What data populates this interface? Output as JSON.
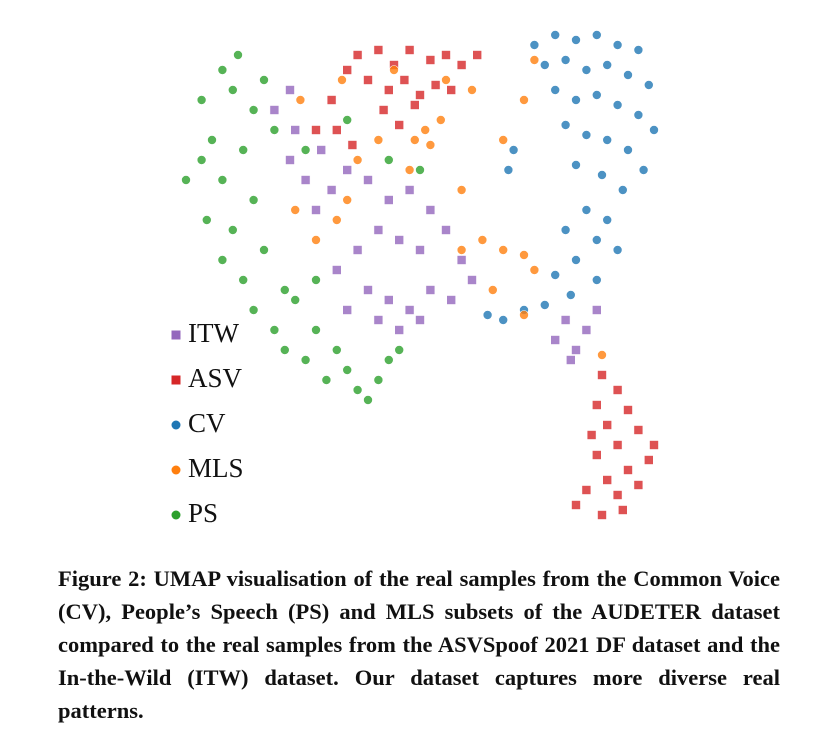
{
  "chart_data": {
    "type": "scatter",
    "xlim": [
      0,
      100
    ],
    "ylim": [
      0,
      100
    ],
    "series": [
      {
        "name": "ITW",
        "color": "#9467bd",
        "marker": "square",
        "x": [
          22,
          26,
          25,
          28,
          31,
          33,
          36,
          40,
          44,
          48,
          52,
          42,
          46,
          50,
          55,
          58,
          38,
          34,
          40,
          44,
          48,
          52,
          56,
          46,
          50,
          42,
          36,
          60,
          25,
          30,
          78,
          82,
          76,
          84,
          80,
          79
        ],
        "y": [
          84,
          80,
          74,
          70,
          76,
          68,
          72,
          70,
          66,
          68,
          64,
          60,
          58,
          56,
          60,
          54,
          56,
          52,
          48,
          46,
          44,
          48,
          46,
          40,
          42,
          42,
          44,
          50,
          88,
          64,
          42,
          40,
          38,
          44,
          36,
          34
        ]
      },
      {
        "name": "ASV",
        "color": "#d62728",
        "marker": "square",
        "x": [
          38,
          42,
          45,
          48,
          52,
          55,
          58,
          61,
          40,
          44,
          47,
          50,
          53,
          56,
          49,
          43,
          36,
          33,
          34,
          37,
          46,
          30,
          85,
          88,
          84,
          90,
          86,
          92,
          88,
          84,
          94,
          90,
          86,
          82,
          88,
          92,
          80,
          85,
          89,
          95,
          83
        ],
        "y": [
          95,
          96,
          93,
          96,
          94,
          95,
          93,
          95,
          90,
          88,
          90,
          87,
          89,
          88,
          85,
          84,
          92,
          86,
          80,
          77,
          81,
          80,
          31,
          28,
          25,
          24,
          21,
          20,
          17,
          15,
          14,
          12,
          10,
          8,
          7,
          9,
          5,
          3,
          4,
          17,
          19
        ]
      },
      {
        "name": "CV",
        "color": "#1f77b4",
        "marker": "circle",
        "x": [
          72,
          76,
          80,
          84,
          88,
          92,
          74,
          78,
          82,
          86,
          90,
          94,
          76,
          80,
          84,
          88,
          92,
          95,
          78,
          82,
          86,
          90,
          93,
          80,
          85,
          89,
          68,
          67,
          82,
          86,
          78,
          84,
          88,
          80,
          76,
          84,
          79,
          74,
          70,
          66,
          63
        ],
        "y": [
          97,
          99,
          98,
          99,
          97,
          96,
          93,
          94,
          92,
          93,
          91,
          89,
          88,
          86,
          87,
          85,
          83,
          80,
          81,
          79,
          78,
          76,
          72,
          73,
          71,
          68,
          76,
          72,
          64,
          62,
          60,
          58,
          56,
          54,
          51,
          50,
          47,
          45,
          44,
          42,
          43
        ]
      },
      {
        "name": "MLS",
        "color": "#ff7f0e",
        "marker": "circle",
        "x": [
          27,
          35,
          45,
          55,
          60,
          51,
          52,
          49,
          54,
          72,
          70,
          38,
          34,
          30,
          36,
          48,
          58,
          62,
          58,
          66,
          70,
          72,
          64,
          70,
          85,
          66,
          42,
          26
        ],
        "y": [
          86,
          90,
          92,
          90,
          88,
          80,
          77,
          78,
          82,
          94,
          86,
          74,
          62,
          58,
          66,
          72,
          68,
          58,
          56,
          56,
          55,
          52,
          48,
          43,
          35,
          78,
          78,
          64
        ]
      },
      {
        "name": "PS",
        "color": "#2ca02c",
        "marker": "circle",
        "x": [
          8,
          12,
          15,
          10,
          5,
          8,
          14,
          18,
          16,
          12,
          20,
          22,
          9,
          14,
          18,
          12,
          16,
          20,
          18,
          22,
          26,
          24,
          28,
          30,
          32,
          36,
          38,
          42,
          44,
          46,
          40,
          34,
          24,
          30,
          36,
          44,
          50,
          28
        ],
        "y": [
          86,
          92,
          95,
          78,
          70,
          74,
          88,
          84,
          76,
          70,
          90,
          80,
          62,
          60,
          66,
          54,
          50,
          56,
          44,
          40,
          46,
          36,
          34,
          40,
          30,
          32,
          28,
          30,
          34,
          36,
          26,
          36,
          48,
          50,
          82,
          74,
          72,
          76
        ]
      }
    ],
    "legend": "lower left",
    "caption": "Figure 2: UMAP visualisation of the real samples from the Common Voice (CV), People’s Speech (PS) and MLS subsets of the AUDETER dataset compared to the real samples from the ASVSpoof 2021 DF dataset and the In-the-Wild (ITW) dataset. Our dataset captures more diverse real patterns."
  }
}
